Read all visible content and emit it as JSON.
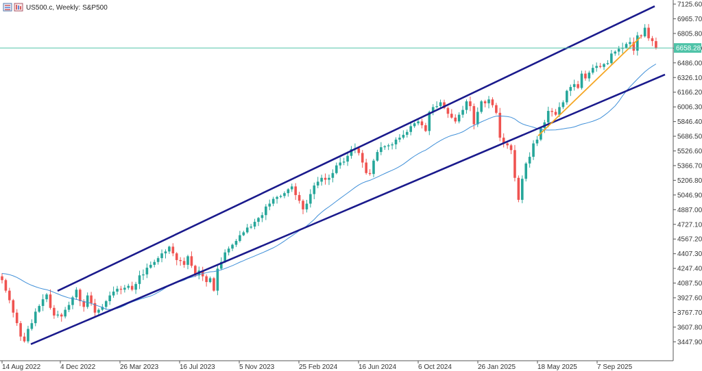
{
  "window": {
    "title": "US500.c, Weekly:  S&P500",
    "icons": [
      "chart-window-icon",
      "indicator-window-icon"
    ]
  },
  "colors": {
    "background": "#ffffff",
    "border": "#555555",
    "bull": "#26a69a",
    "bear": "#ef5350",
    "channel": "#1a1a8c",
    "trendline": "#f5a623",
    "moving_average": "#3f8fd8",
    "horizontal_line": "#4fc3a8",
    "price_tag": "#4fc3a8"
  },
  "chart_data": {
    "type": "candlestick",
    "symbol": "US500.c",
    "timeframe": "Weekly",
    "instrument": "S&P500",
    "x_labels": [
      "14 Aug 2022",
      "4 Dec 2022",
      "26 Mar 2023",
      "16 Jul 2023",
      "5 Nov 2023",
      "25 Feb 2024",
      "16 Jun 2024",
      "6 Oct 2024",
      "26 Jan 2025",
      "18 May 2025",
      "7 Sep 2025"
    ],
    "y_ticks": [
      "7125.60",
      "6965.70",
      "6805.80",
      "6646.00",
      "6486.00",
      "6326.10",
      "6166.20",
      "6006.30",
      "5846.40",
      "5686.50",
      "5526.60",
      "5366.70",
      "5206.80",
      "5046.90",
      "4887.00",
      "4727.10",
      "4567.20",
      "4407.30",
      "4247.40",
      "4087.50",
      "3927.60",
      "3767.70",
      "3607.80",
      "3447.90"
    ],
    "ylim": [
      3387,
      7160
    ],
    "current_price": "6658.28",
    "grid": false,
    "legend": "none",
    "close_series": [
      4230,
      4120,
      4020,
      3890,
      3780,
      3640,
      3590,
      3720,
      3780,
      3900,
      3960,
      4030,
      4080,
      3940,
      3860,
      3870,
      3850,
      3920,
      3970,
      4050,
      4130,
      4010,
      3950,
      4070,
      3990,
      3890,
      3920,
      3950,
      4010,
      4070,
      4110,
      4140,
      4130,
      4150,
      4170,
      4130,
      4190,
      4280,
      4290,
      4360,
      4390,
      4420,
      4460,
      4510,
      4530,
      4580,
      4510,
      4440,
      4430,
      4390,
      4480,
      4380,
      4280,
      4330,
      4270,
      4210,
      4250,
      4120,
      4350,
      4420,
      4520,
      4560,
      4600,
      4640,
      4700,
      4730,
      4780,
      4790,
      4840,
      4880,
      4910,
      5000,
      5030,
      5080,
      5100,
      5110,
      5140,
      5180,
      5210,
      5120,
      5060,
      4970,
      5030,
      5130,
      5220,
      5260,
      5300,
      5280,
      5300,
      5350,
      5430,
      5460,
      5470,
      5530,
      5600,
      5610,
      5560,
      5460,
      5350,
      5340,
      5480,
      5570,
      5620,
      5630,
      5640,
      5650,
      5700,
      5720,
      5750,
      5780,
      5840,
      5870,
      5890,
      5850,
      5790,
      5990,
      6040,
      6050,
      6090,
      6030,
      5970,
      5930,
      5890,
      5960,
      6010,
      6100,
      6050,
      5860,
      5990,
      6100,
      6080,
      6120,
      6060,
      5980,
      5720,
      5660,
      5640,
      5590,
      5300,
      5070,
      5290,
      5450,
      5520,
      5660,
      5700,
      5820,
      5880,
      6000,
      5990,
      5960,
      6040,
      6090,
      6210,
      6250,
      6280,
      6240,
      6390,
      6340,
      6400,
      6450,
      6470,
      6460,
      6490,
      6500,
      6600,
      6620,
      6650,
      6660,
      6700,
      6720,
      6630,
      6790,
      6780,
      6870,
      6760,
      6730,
      6658
    ]
  }
}
